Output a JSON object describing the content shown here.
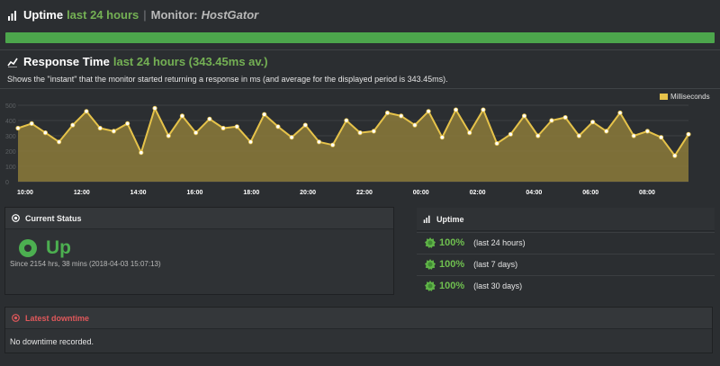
{
  "uptime_header": {
    "title": "Uptime",
    "period": "last 24 hours",
    "monitor_label": "Monitor:",
    "monitor_name": "HostGator",
    "bar_value_percent": 100,
    "bar_color": "#4ca64c"
  },
  "response_header": {
    "title": "Response Time",
    "period_avg": "last 24 hours (343.45ms av.)",
    "description": "Shows the \"instant\" that the monitor started returning a response in ms (and average for the displayed period is 343.45ms)."
  },
  "chart_data": {
    "type": "area",
    "series": [
      {
        "name": "Milliseconds",
        "color": "#e6c34a",
        "values": [
          350,
          380,
          320,
          260,
          370,
          460,
          350,
          330,
          380,
          190,
          480,
          300,
          430,
          320,
          410,
          350,
          360,
          260,
          440,
          360,
          290,
          370,
          260,
          240,
          400,
          320,
          330,
          450,
          430,
          370,
          460,
          290,
          470,
          320,
          470,
          250,
          310,
          430,
          300,
          400,
          420,
          300,
          390,
          330,
          450,
          300,
          330,
          290,
          170,
          310
        ]
      }
    ],
    "x_tick_labels": [
      "10:00",
      "12:00",
      "14:00",
      "16:00",
      "18:00",
      "20:00",
      "22:00",
      "00:00",
      "02:00",
      "04:00",
      "06:00",
      "08:00"
    ],
    "y_tick_labels": [
      "500",
      "400",
      "300",
      "200",
      "100",
      "0"
    ],
    "ylim": [
      0,
      500
    ],
    "grid": true,
    "legend": "top-right"
  },
  "current_status": {
    "title": "Current Status",
    "status": "Up",
    "status_color": "#4caf50",
    "since": "Since 2154 hrs, 38 mins (2018-04-03 15:07:13)"
  },
  "uptime_panel": {
    "title": "Uptime",
    "rows": [
      {
        "percent": "100%",
        "period": "(last 24 hours)"
      },
      {
        "percent": "100%",
        "period": "(last 7 days)"
      },
      {
        "percent": "100%",
        "period": "(last 30 days)"
      }
    ]
  },
  "downtime": {
    "title": "Latest downtime",
    "title_color": "#e0585b",
    "text": "No downtime recorded."
  },
  "icons": {
    "uptime": "bar-chart-icon",
    "response": "line-chart-icon",
    "status": "dot-circle-icon",
    "uptime_badge": "certificate-badge-icon",
    "downtime": "dot-circle-icon"
  }
}
